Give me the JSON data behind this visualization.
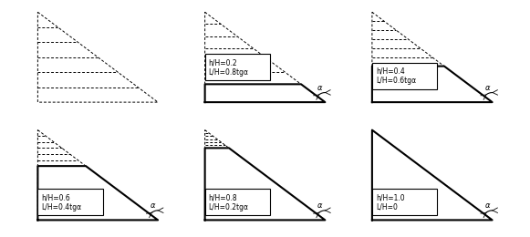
{
  "panels": [
    {
      "hH": 0.0,
      "label_hH": "",
      "label_LH": "",
      "show_label_box": false
    },
    {
      "hH": 0.2,
      "label_hH": "h/H=0.2",
      "label_LH": "L/H=0.8tgα",
      "show_label_box": true
    },
    {
      "hH": 0.4,
      "label_hH": "h/H=0.4",
      "label_LH": "L/H=0.6tgα",
      "show_label_box": true
    },
    {
      "hH": 0.6,
      "label_hH": "h/H=0.6",
      "label_LH": "L/H=0.4tgα",
      "show_label_box": true
    },
    {
      "hH": 0.8,
      "label_hH": "h/H=0.8",
      "label_LH": "L/H=0.2tgα",
      "show_label_box": true
    },
    {
      "hH": 1.0,
      "label_hH": "h/H=1.0",
      "label_LH": "L/H=0",
      "show_label_box": true
    }
  ],
  "n_dashed_layers": 4,
  "background": "white",
  "figsize": [
    5.81,
    2.6
  ],
  "dpi": 100
}
